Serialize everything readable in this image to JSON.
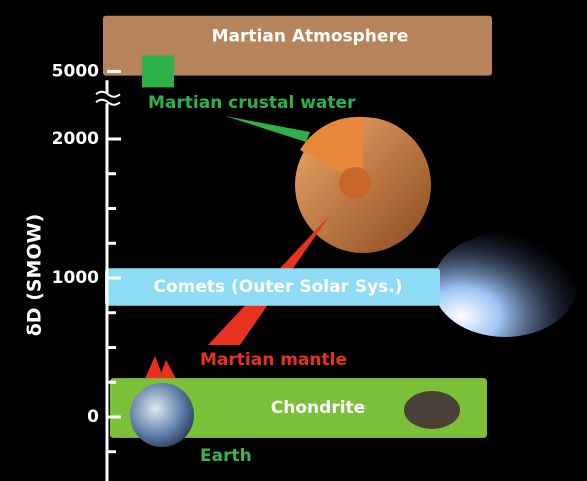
{
  "chart_data": {
    "type": "range",
    "y_label": "δD (SMOW)",
    "ylim": [
      -450,
      5400
    ],
    "axis_break": [
      2250,
      4850
    ],
    "yticks": [
      0,
      1000,
      2000,
      5000
    ],
    "minor_yticks": [
      -250,
      250,
      500,
      750,
      1250,
      1500,
      1750
    ],
    "bands": [
      {
        "name": "Martian Atmosphere",
        "range": [
          4970,
          5400
        ],
        "color": "#b7835a"
      },
      {
        "name": "Comets (Outer Solar Sys.)",
        "range": [
          800,
          1070
        ],
        "color": "#8fdcf7"
      },
      {
        "name": "Chondrite",
        "range": [
          -150,
          280
        ],
        "color": "#7cc03a"
      }
    ],
    "points": [
      {
        "name": "Martian crustal water",
        "value": 5000,
        "color": "#2fb14a"
      }
    ],
    "annotations": [
      {
        "text": "Martian mantle",
        "color": "#e8311f"
      },
      {
        "text": "Earth",
        "color": "#3ab54a"
      }
    ]
  }
}
